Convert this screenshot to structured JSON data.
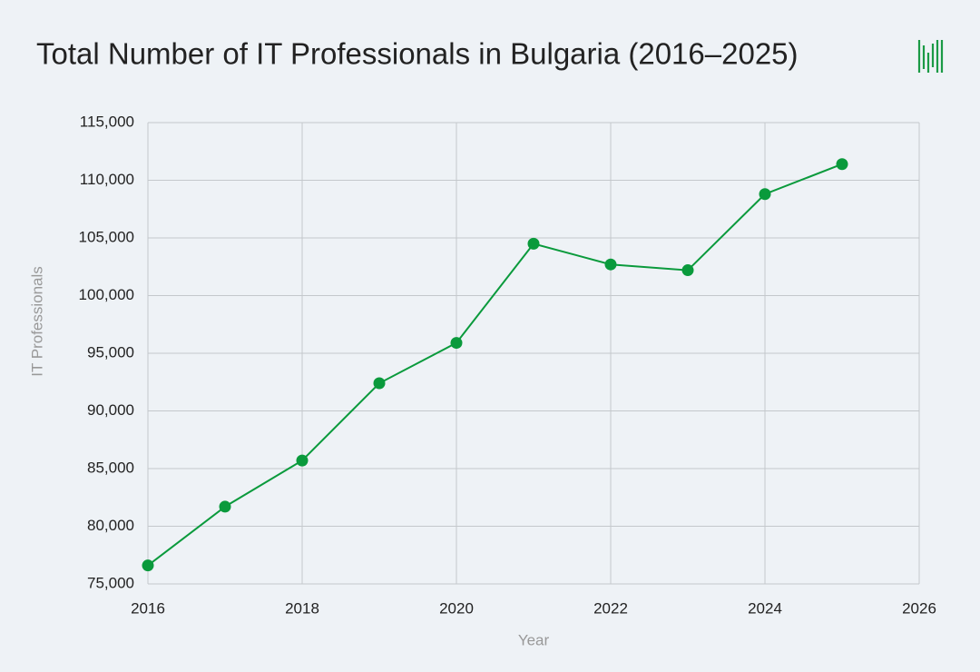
{
  "chart_data": {
    "type": "line",
    "title": "Total Number of IT Professionals in Bulgaria (2016–2025)",
    "x_label": "Year",
    "y_label": "IT Professionals",
    "x": [
      2016,
      2017,
      2018,
      2019,
      2020,
      2021,
      2022,
      2023,
      2024,
      2025
    ],
    "series": [
      {
        "name": "IT Professionals",
        "color": "#0a9a3c",
        "values": [
          76600,
          81700,
          85700,
          92400,
          95900,
          104500,
          102700,
          102200,
          108800,
          111400
        ]
      }
    ],
    "xlim": [
      2016,
      2026
    ],
    "xticks": [
      2016,
      2018,
      2020,
      2022,
      2024,
      2026
    ],
    "ylim": [
      75000,
      115000
    ],
    "yticks": [
      {
        "value": 75000,
        "label": "75,000"
      },
      {
        "value": 80000,
        "label": "80,000"
      },
      {
        "value": 85000,
        "label": "85,000"
      },
      {
        "value": 90000,
        "label": "90,000"
      },
      {
        "value": 95000,
        "label": "95,000"
      },
      {
        "value": 100000,
        "label": "100,000"
      },
      {
        "value": 105000,
        "label": "105,000"
      },
      {
        "value": 110000,
        "label": "110,000"
      },
      {
        "value": 115000,
        "label": "115,000"
      }
    ],
    "grid": true
  }
}
